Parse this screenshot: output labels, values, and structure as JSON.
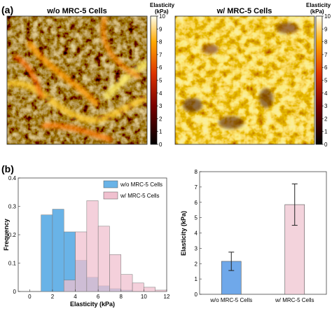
{
  "panels": {
    "a": "(a)",
    "b": "(b)"
  },
  "colors": {
    "without_cells": "#69b3e7",
    "with_cells": "#f0c0cf",
    "overlap": "#b8b8d8",
    "bar_without": "#6fa8ea",
    "bar_with": "#f3d3dc",
    "heatmap_low": "#000000",
    "heatmap_mid": "#cc2200",
    "heatmap_high": "#ffff66"
  },
  "maps": [
    {
      "title": "w/o MRC-5 Cells",
      "colorbar_title": [
        "Elasticity",
        "(kPa)"
      ],
      "colorbar_ticks": [
        "10",
        "9",
        "8",
        "7",
        "6",
        "5",
        "4",
        "3",
        "2",
        "1",
        "0"
      ]
    },
    {
      "title": "w/ MRC-5 Cells",
      "colorbar_title": [
        "Elasticity",
        "(kPa)"
      ],
      "colorbar_ticks": [
        "10",
        "9",
        "8",
        "7",
        "6",
        "5",
        "4",
        "3",
        "2",
        "1",
        "0"
      ]
    }
  ],
  "chart_data": [
    {
      "type": "heatmap",
      "title": "w/o MRC-5 Cells",
      "colorbar_label": "Elasticity (kPa)",
      "range": [
        0,
        10
      ],
      "pattern": "dark background with bright fibrous streaks"
    },
    {
      "type": "heatmap",
      "title": "w/ MRC-5 Cells",
      "colorbar_label": "Elasticity (kPa)",
      "range": [
        0,
        10
      ],
      "pattern": "predominantly bright orange-yellow with dark spots"
    },
    {
      "type": "bar",
      "subtype": "histogram",
      "xlabel": "Elasticity (kPa)",
      "ylabel": "Frequency",
      "xlim": [
        -1,
        12
      ],
      "ylim": [
        0,
        0.4
      ],
      "xticks": [
        "0",
        "2",
        "4",
        "6",
        "8",
        "10",
        "12"
      ],
      "yticks": [
        "0",
        "0.1",
        "0.2",
        "0.3",
        "0.4"
      ],
      "legend_position": "top-right",
      "series": [
        {
          "name": "w/o MRC-5 Cells",
          "bins": [
            [
              1,
              2
            ],
            [
              2,
              3
            ],
            [
              3,
              4
            ],
            [
              4,
              5
            ],
            [
              5,
              6
            ],
            [
              6,
              7
            ],
            [
              7,
              8
            ],
            [
              8,
              9
            ]
          ],
          "values": [
            0.27,
            0.29,
            0.21,
            0.11,
            0.05,
            0.02,
            0.01,
            0.005
          ]
        },
        {
          "name": "w/ MRC-5 Cells",
          "bins": [
            [
              3,
              4
            ],
            [
              4,
              5
            ],
            [
              5,
              6
            ],
            [
              6,
              7
            ],
            [
              7,
              8
            ],
            [
              8,
              9
            ],
            [
              9,
              10
            ],
            [
              10,
              11
            ],
            [
              11,
              12
            ]
          ],
          "values": [
            0.04,
            0.21,
            0.32,
            0.23,
            0.13,
            0.06,
            0.03,
            0.015,
            0.005
          ]
        }
      ]
    },
    {
      "type": "bar",
      "categories": [
        "w/o MRC-5 Cells",
        "w/ MRC-5 Cells"
      ],
      "values": [
        2.15,
        5.85
      ],
      "errors": [
        0.6,
        1.35
      ],
      "ylabel": "Elasticity (kPa)",
      "ylim": [
        0,
        8
      ],
      "yticks": [
        "0",
        "1",
        "2",
        "3",
        "4",
        "5",
        "6",
        "7",
        "8"
      ]
    }
  ]
}
